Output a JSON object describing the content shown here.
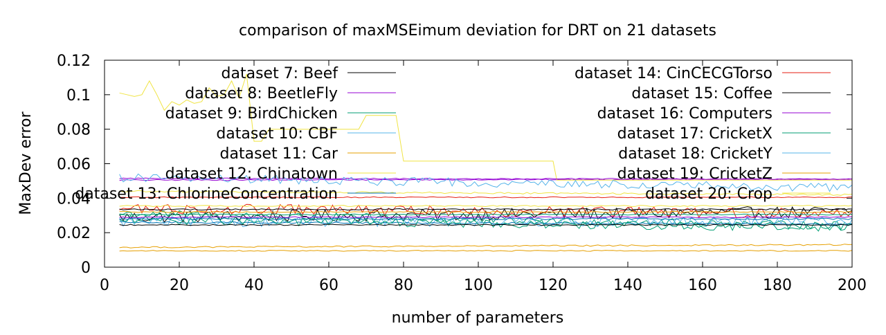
{
  "chart_data": {
    "type": "line",
    "title": "comparison of maxMSEimum deviation for DRT on 21 datasets",
    "xlabel": "number of parameters",
    "ylabel": "MaxDev error",
    "xlim": [
      0,
      200
    ],
    "ylim": [
      0,
      0.12
    ],
    "x_ticks": [
      "0",
      "20",
      "40",
      "60",
      "80",
      "100",
      "120",
      "140",
      "160",
      "180",
      "200"
    ],
    "y_ticks": [
      "0",
      "0.02",
      "0.04",
      "0.06",
      "0.08",
      "0.1",
      "0.12"
    ],
    "x_start": 4,
    "grid": false,
    "legend_placement": "top, two columns",
    "series": [
      {
        "name": "dataset 7: Beef",
        "color": "#000000",
        "style": "noisy",
        "base": 0.029,
        "trend": 0.003,
        "amp": 0.0035
      },
      {
        "name": "dataset 8: BeetleFly",
        "color": "#9400d3",
        "style": "flat",
        "base": 0.0505,
        "trend": 0.0005,
        "amp": 0.0003
      },
      {
        "name": "dataset 9: BirdChicken",
        "color": "#009e73",
        "style": "noisy",
        "base": 0.031,
        "trend": -0.007,
        "amp": 0.0025
      },
      {
        "name": "dataset 10: CBF",
        "color": "#56b4e9",
        "style": "noisy",
        "base": 0.0265,
        "trend": 0.0,
        "amp": 0.003
      },
      {
        "name": "dataset 11: Car",
        "color": "#e69f00",
        "style": "flat",
        "base": 0.0115,
        "trend": 0.0015,
        "amp": 0.0004
      },
      {
        "name": "dataset 12: Chinatown",
        "color": "#f0e442",
        "style": "step",
        "points": [
          [
            4,
            0.101
          ],
          [
            6,
            0.1
          ],
          [
            8,
            0.099
          ],
          [
            10,
            0.1
          ],
          [
            12,
            0.108
          ],
          [
            14,
            0.1
          ],
          [
            16,
            0.091
          ],
          [
            18,
            0.096
          ],
          [
            20,
            0.094
          ],
          [
            22,
            0.097
          ],
          [
            24,
            0.095
          ],
          [
            26,
            0.096
          ],
          [
            28,
            0.104
          ],
          [
            30,
            0.099
          ],
          [
            32,
            0.1
          ],
          [
            34,
            0.108
          ],
          [
            36,
            0.098
          ],
          [
            38,
            0.112
          ],
          [
            40,
            0.073
          ],
          [
            42,
            0.073
          ],
          [
            44,
            0.08
          ],
          [
            68,
            0.08
          ],
          [
            70,
            0.088
          ],
          [
            78,
            0.088
          ],
          [
            80,
            0.0615
          ],
          [
            120,
            0.0615
          ],
          [
            121,
            0.0505
          ],
          [
            200,
            0.0505
          ]
        ]
      },
      {
        "name": "dataset 13: ChlorineConcentration",
        "color": "#0072b2",
        "style": "flat",
        "base": 0.026,
        "trend": -0.001,
        "amp": 0.0005
      },
      {
        "name": "dataset 14: CinCECGTorso",
        "color": "#e51e10",
        "style": "noisy",
        "base": 0.034,
        "trend": -0.003,
        "amp": 0.003
      },
      {
        "name": "dataset 15: Coffee",
        "color": "#000000",
        "style": "flat",
        "base": 0.0335,
        "trend": 0.0,
        "amp": 0.0004
      },
      {
        "name": "dataset 16: Computers",
        "color": "#9400d3",
        "style": "flat",
        "base": 0.0515,
        "trend": -0.0005,
        "amp": 0.0003
      },
      {
        "name": "dataset 17: CricketX",
        "color": "#009e73",
        "style": "noisy",
        "base": 0.0275,
        "trend": -0.0045,
        "amp": 0.0025
      },
      {
        "name": "dataset 18: CricketY",
        "color": "#56b4e9",
        "style": "noisy",
        "base": 0.052,
        "trend": -0.006,
        "amp": 0.0025
      },
      {
        "name": "dataset 19: CricketZ",
        "color": "#e69f00",
        "style": "flat",
        "base": 0.0095,
        "trend": 0.0,
        "amp": 0.0003
      },
      {
        "name": "dataset 20: Crop",
        "color": "#f0e442",
        "style": "flat",
        "base": 0.044,
        "trend": -0.002,
        "amp": 0.0005
      },
      {
        "name": "",
        "color": "#0072b2",
        "style": "flat",
        "base": 0.028,
        "trend": 0.0,
        "amp": 0.0005
      },
      {
        "name": "",
        "color": "#e51e10",
        "style": "flat",
        "base": 0.0405,
        "trend": 0.0,
        "amp": 0.0003
      },
      {
        "name": "",
        "color": "#000000",
        "style": "flat",
        "base": 0.0245,
        "trend": 0.0,
        "amp": 0.0003
      },
      {
        "name": "",
        "color": "#9400d3",
        "style": "flat",
        "base": 0.029,
        "trend": 0.0,
        "amp": 0.0003
      },
      {
        "name": "",
        "color": "#009e73",
        "style": "flat",
        "base": 0.0305,
        "trend": 0.0,
        "amp": 0.0003
      },
      {
        "name": "",
        "color": "#e69f00",
        "style": "flat",
        "base": 0.032,
        "trend": 0.0,
        "amp": 0.0003
      },
      {
        "name": "",
        "color": "#f0e442",
        "style": "flat",
        "base": 0.0355,
        "trend": 0.0,
        "amp": 0.0004
      }
    ]
  }
}
